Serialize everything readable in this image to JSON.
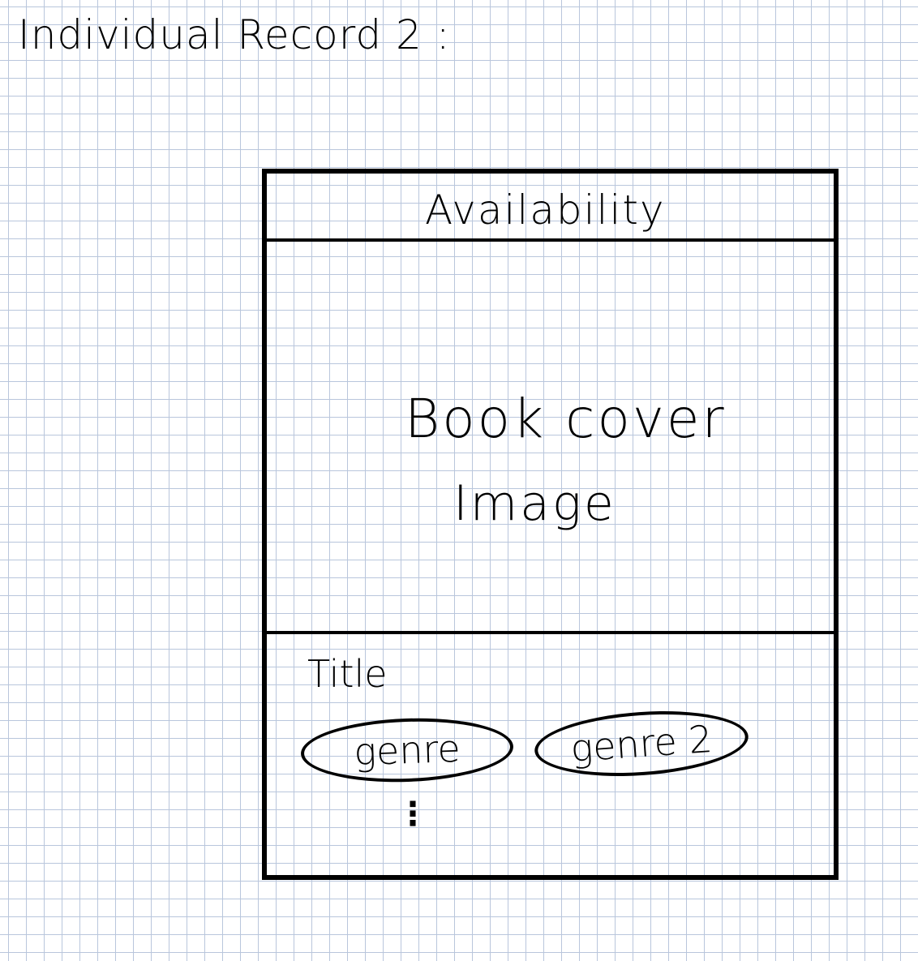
{
  "page": {
    "title": "Individual Record 2 :"
  },
  "card": {
    "availability_label": "Availability",
    "cover_line1": "Book cover",
    "cover_line2": "Image",
    "title_label": "Title",
    "genres": [
      {
        "label": "genre"
      },
      {
        "label": "genre 2"
      }
    ],
    "more_indicator": "⋮"
  }
}
